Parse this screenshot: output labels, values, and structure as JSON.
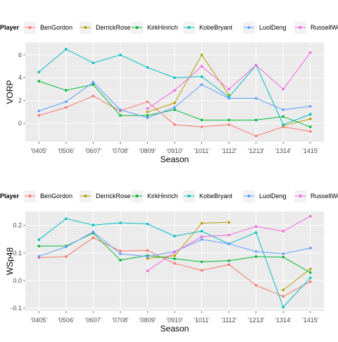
{
  "colors": {
    "BenGordon": "#F8766D",
    "DerrickRose": "#B79F00",
    "KirkHinrich": "#00BA38",
    "KobeBryant": "#00BFC4",
    "LuolDeng": "#619CFF",
    "RussellWestbrook": "#F564E3"
  },
  "chart_data": [
    {
      "type": "line",
      "legend_title": "Player",
      "legend_position": "top",
      "xlabel": "Season",
      "ylabel": "VORP",
      "categories": [
        "'0405'",
        "'0506'",
        "'0607'",
        "'0708'",
        "'0809'",
        "'0910'",
        "'1011'",
        "'1112'",
        "'1213'",
        "'1314'",
        "'1415'"
      ],
      "ylim": [
        -1.6,
        7.1
      ],
      "yticks": [
        0,
        2,
        4,
        6
      ],
      "ytick_labels": [
        "0",
        "2",
        "4",
        "6"
      ],
      "grid": true,
      "series": [
        {
          "name": "BenGordon",
          "values": [
            0.7,
            1.4,
            2.4,
            1.1,
            1.9,
            -0.1,
            -0.3,
            -0.1,
            -1.1,
            -0.3,
            -0.7
          ]
        },
        {
          "name": "DerrickRose",
          "values": [
            null,
            null,
            null,
            null,
            1.0,
            1.8,
            6.0,
            2.5,
            null,
            -0.2,
            0.4
          ]
        },
        {
          "name": "KirkHinrich",
          "values": [
            3.7,
            2.9,
            3.4,
            0.7,
            0.7,
            1.2,
            0.3,
            0.3,
            0.3,
            0.6,
            -0.3
          ]
        },
        {
          "name": "KobeBryant",
          "values": [
            4.5,
            6.5,
            5.3,
            6.0,
            4.9,
            4.0,
            4.1,
            2.3,
            5.1,
            -0.1,
            0.8
          ]
        },
        {
          "name": "LuolDeng",
          "values": [
            1.1,
            1.9,
            3.6,
            1.2,
            0.5,
            1.4,
            3.4,
            2.2,
            2.2,
            1.2,
            1.5
          ]
        },
        {
          "name": "RussellWestbrook",
          "values": [
            null,
            null,
            null,
            null,
            1.3,
            2.9,
            5.0,
            3.0,
            5.1,
            3.0,
            6.2
          ]
        }
      ]
    },
    {
      "type": "line",
      "legend_title": "Player",
      "legend_position": "top",
      "xlabel": "Season",
      "ylabel": "WSp48",
      "categories": [
        "'0405'",
        "'0506'",
        "'0607'",
        "'0708'",
        "'0809'",
        "'0910'",
        "'1011'",
        "'1112'",
        "'1213'",
        "'1314'",
        "'1415'"
      ],
      "ylim": [
        -0.11,
        0.25
      ],
      "yticks": [
        -0.1,
        0.0,
        0.1,
        0.2
      ],
      "ytick_labels": [
        "-0.1",
        "0.0",
        "0.1",
        "0.2"
      ],
      "grid": true,
      "series": [
        {
          "name": "BenGordon",
          "values": [
            0.083,
            0.087,
            0.155,
            0.107,
            0.109,
            0.062,
            0.037,
            0.058,
            -0.017,
            -0.057,
            -0.004
          ]
        },
        {
          "name": "DerrickRose",
          "values": [
            null,
            null,
            null,
            null,
            0.08,
            0.09,
            0.208,
            0.211,
            null,
            -0.034,
            0.042
          ]
        },
        {
          "name": "KirkHinrich",
          "values": [
            0.125,
            0.125,
            0.172,
            0.074,
            0.091,
            0.079,
            0.068,
            0.072,
            0.087,
            0.085,
            0.029
          ]
        },
        {
          "name": "KobeBryant",
          "values": [
            0.148,
            0.224,
            0.201,
            0.209,
            0.205,
            0.161,
            0.179,
            0.133,
            0.174,
            -0.096,
            0.01
          ]
        },
        {
          "name": "LuolDeng",
          "values": [
            0.088,
            0.122,
            0.176,
            0.097,
            0.087,
            0.105,
            0.149,
            0.133,
            0.105,
            0.097,
            0.118
          ]
        },
        {
          "name": "RussellWestbrook",
          "values": [
            null,
            null,
            null,
            null,
            0.035,
            0.103,
            0.159,
            0.165,
            0.196,
            0.179,
            0.233
          ]
        }
      ]
    }
  ]
}
